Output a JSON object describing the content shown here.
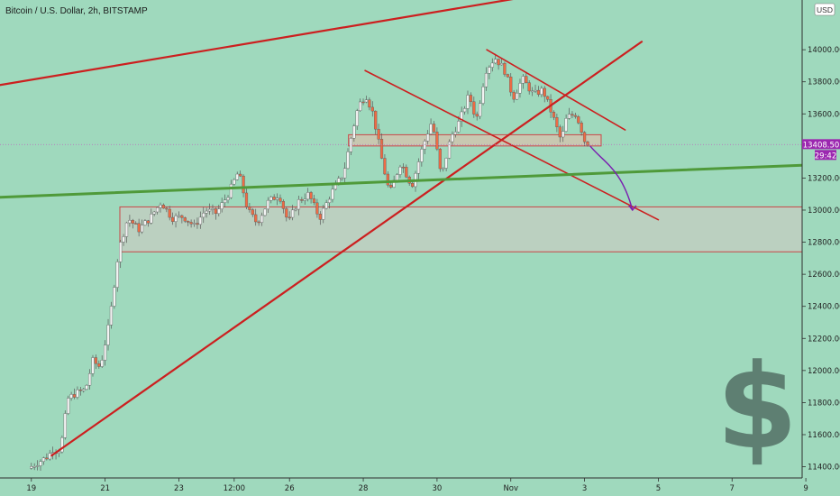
{
  "header": {
    "title": "Bitcoin / U.S. Dollar, 2h, BITSTAMP"
  },
  "price_axis": {
    "currency": "USD"
  },
  "chart_data": {
    "type": "candlestick",
    "title": "Bitcoin / U.S. Dollar, 2h, BITSTAMP",
    "ylim": [
      11330,
      14310
    ],
    "y_ticks": [
      11400,
      11600,
      11800,
      12000,
      12200,
      12400,
      12600,
      12800,
      13000,
      13200,
      13400,
      13600,
      13800,
      14000
    ],
    "y_tick_labels": [
      "11400.00",
      "11600.00",
      "11800.00",
      "12000.00",
      "12200.00",
      "12400.00",
      "12600.00",
      "12800.00",
      "13000.00",
      "13200.00",
      "13400.00",
      "13600.00",
      "13800.00",
      "14000.00"
    ],
    "x_ticks": [
      {
        "label": "19",
        "t": 0
      },
      {
        "label": "21",
        "t": 2
      },
      {
        "label": "23",
        "t": 4
      },
      {
        "label": "12:00",
        "t": 5.5
      },
      {
        "label": "26",
        "t": 7
      },
      {
        "label": "28",
        "t": 9
      },
      {
        "label": "30",
        "t": 11
      },
      {
        "label": "Nov",
        "t": 13
      },
      {
        "label": "3",
        "t": 15
      },
      {
        "label": "5",
        "t": 17
      },
      {
        "label": "7",
        "t": 19
      },
      {
        "label": "9",
        "t": 21
      }
    ],
    "x_range": [
      -0.85,
      20.9
    ],
    "current_price": {
      "value": 13408.5,
      "label": "13408.50",
      "countdown": "29:42"
    },
    "anchors": [
      [
        0,
        11390
      ],
      [
        0.5,
        11460
      ],
      [
        0.55,
        11470
      ],
      [
        0.7,
        11520
      ],
      [
        0.8,
        11480
      ],
      [
        0.95,
        11600
      ],
      [
        1.05,
        11820
      ],
      [
        1.3,
        11860
      ],
      [
        1.55,
        11880
      ],
      [
        1.75,
        12060
      ],
      [
        1.95,
        12020
      ],
      [
        2.2,
        12300
      ],
      [
        2.45,
        12750
      ],
      [
        2.7,
        12950
      ],
      [
        3,
        12880
      ],
      [
        3.3,
        12950
      ],
      [
        3.6,
        13050
      ],
      [
        3.9,
        12950
      ],
      [
        4.2,
        12960
      ],
      [
        4.5,
        12900
      ],
      [
        4.8,
        13000
      ],
      [
        5.1,
        12980
      ],
      [
        5.4,
        13090
      ],
      [
        5.7,
        13240
      ],
      [
        5.95,
        13000
      ],
      [
        6.2,
        12920
      ],
      [
        6.5,
        13050
      ],
      [
        6.8,
        13100
      ],
      [
        7.05,
        12920
      ],
      [
        7.3,
        13050
      ],
      [
        7.6,
        13100
      ],
      [
        7.9,
        12950
      ],
      [
        8.2,
        13100
      ],
      [
        8.55,
        13230
      ],
      [
        8.75,
        13450
      ],
      [
        8.95,
        13650
      ],
      [
        9.15,
        13720
      ],
      [
        9.35,
        13600
      ],
      [
        9.6,
        13300
      ],
      [
        9.8,
        13100
      ],
      [
        10.1,
        13300
      ],
      [
        10.4,
        13150
      ],
      [
        10.7,
        13400
      ],
      [
        10.95,
        13560
      ],
      [
        11.2,
        13200
      ],
      [
        11.45,
        13450
      ],
      [
        11.7,
        13560
      ],
      [
        11.95,
        13720
      ],
      [
        12.15,
        13560
      ],
      [
        12.4,
        13870
      ],
      [
        12.65,
        13950
      ],
      [
        12.9,
        13880
      ],
      [
        13.15,
        13700
      ],
      [
        13.4,
        13820
      ],
      [
        13.7,
        13720
      ],
      [
        13.95,
        13750
      ],
      [
        14.2,
        13600
      ],
      [
        14.45,
        13430
      ],
      [
        14.6,
        13580
      ],
      [
        14.85,
        13600
      ],
      [
        15,
        13500
      ],
      [
        15.1,
        13420
      ]
    ],
    "trendlines": [
      {
        "name": "upper-channel-line",
        "color": "#cc1f1f",
        "width": 2.2,
        "points": [
          [
            -0.85,
            13780
          ],
          [
            16.8,
            14460
          ]
        ]
      },
      {
        "name": "rising-trendline",
        "color": "#cc1f1f",
        "width": 2.2,
        "points": [
          [
            0.55,
            11470
          ],
          [
            16.55,
            14050
          ]
        ]
      },
      {
        "name": "descending-top-line",
        "color": "#cc1f1f",
        "width": 1.6,
        "points": [
          [
            12.35,
            14000
          ],
          [
            16.1,
            13500
          ]
        ]
      },
      {
        "name": "descending-support-line",
        "color": "#cc1f1f",
        "width": 1.6,
        "points": [
          [
            9.05,
            13870
          ],
          [
            17.0,
            12940
          ]
        ]
      },
      {
        "name": "green-support-line",
        "color": "#4f9a3a",
        "width": 3,
        "points": [
          [
            -0.85,
            13080
          ],
          [
            20.9,
            13280
          ]
        ]
      }
    ],
    "zones": [
      {
        "name": "support-zone",
        "t0": 2.4,
        "t1": 20.9,
        "y0": 12740,
        "y1": 13020,
        "fill": "#c4ccc2",
        "stroke": "#c94747"
      },
      {
        "name": "resistance-zone",
        "t0": 8.6,
        "t1": 15.45,
        "y0": 13400,
        "y1": 13470,
        "fill": "#d6c2ad",
        "stroke": "#c94747"
      }
    ],
    "projection": {
      "color": "#7a1fb0",
      "points": [
        [
          15.15,
          13400
        ],
        [
          15.5,
          13300
        ],
        [
          16.0,
          13260
        ],
        [
          16.3,
          13000
        ]
      ]
    },
    "colors": {
      "up": "#f3f3f3",
      "down": "#ef6b44",
      "wick": "#5a5a5a",
      "dollar_icon": "#5e7f72"
    }
  }
}
